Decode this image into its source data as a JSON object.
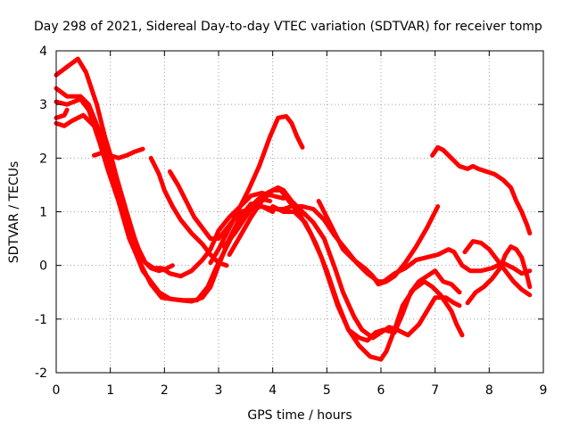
{
  "chart_data": {
    "type": "scatter",
    "title": "Day 298 of 2021, Sidereal Day-to-day VTEC variation (SDTVAR) for receiver tomp",
    "xlabel": "GPS time / hours",
    "ylabel": "SDTVAR / TECUs",
    "xlim": [
      0,
      9
    ],
    "ylim": [
      -2,
      4
    ],
    "xticks": [
      "0",
      "1",
      "2",
      "3",
      "4",
      "5",
      "6",
      "7",
      "8",
      "9"
    ],
    "yticks": [
      "-2",
      "-1",
      "0",
      "1",
      "2",
      "3",
      "4"
    ],
    "grid": true,
    "marker": "+",
    "color": "#ff0000",
    "series": [
      {
        "name": "s1",
        "points": [
          [
            0,
            3.55
          ],
          [
            0.2,
            3.7
          ],
          [
            0.4,
            3.85
          ],
          [
            0.55,
            3.6
          ],
          [
            0.75,
            3.0
          ],
          [
            0.9,
            2.4
          ],
          [
            1.05,
            1.9
          ],
          [
            1.2,
            1.3
          ],
          [
            1.35,
            0.8
          ],
          [
            1.5,
            0.35
          ],
          [
            1.65,
            0.05
          ],
          [
            1.8,
            -0.05
          ],
          [
            1.95,
            -0.05
          ],
          [
            2.1,
            -0.15
          ],
          [
            2.3,
            -0.2
          ],
          [
            2.5,
            -0.1
          ],
          [
            2.7,
            0.1
          ],
          [
            2.85,
            0.3
          ],
          [
            3.0,
            0.65
          ],
          [
            3.2,
            0.9
          ],
          [
            3.4,
            1.1
          ],
          [
            3.6,
            1.3
          ],
          [
            3.8,
            1.35
          ],
          [
            4.0,
            1.3
          ],
          [
            4.2,
            1.25
          ]
        ]
      },
      {
        "name": "s2",
        "points": [
          [
            0,
            3.3
          ],
          [
            0.2,
            3.15
          ],
          [
            0.45,
            3.15
          ],
          [
            0.6,
            3.0
          ],
          [
            0.8,
            2.5
          ],
          [
            1.0,
            1.9
          ],
          [
            1.2,
            1.1
          ],
          [
            1.4,
            0.4
          ],
          [
            1.6,
            -0.1
          ],
          [
            1.75,
            -0.3
          ],
          [
            1.9,
            -0.5
          ],
          [
            2.1,
            -0.62
          ],
          [
            2.3,
            -0.65
          ],
          [
            2.5,
            -0.67
          ],
          [
            2.7,
            -0.6
          ],
          [
            2.85,
            -0.4
          ],
          [
            3.0,
            0.0
          ],
          [
            3.2,
            0.5
          ],
          [
            3.4,
            0.9
          ],
          [
            3.6,
            1.15
          ],
          [
            3.8,
            1.1
          ],
          [
            4.0,
            1.0
          ]
        ]
      },
      {
        "name": "s3",
        "points": [
          [
            0,
            3.05
          ],
          [
            0.2,
            3.0
          ],
          [
            0.45,
            3.1
          ],
          [
            0.6,
            2.9
          ],
          [
            0.8,
            2.3
          ],
          [
            0.95,
            1.8
          ],
          [
            1.15,
            1.2
          ],
          [
            1.35,
            0.5
          ],
          [
            1.55,
            0.05
          ],
          [
            1.75,
            -0.35
          ],
          [
            1.95,
            -0.6
          ],
          [
            2.15,
            -0.63
          ],
          [
            2.35,
            -0.65
          ],
          [
            2.6,
            -0.65
          ],
          [
            2.8,
            -0.4
          ],
          [
            2.95,
            -0.05
          ],
          [
            3.15,
            0.35
          ],
          [
            3.35,
            0.75
          ],
          [
            3.55,
            1.05
          ],
          [
            3.75,
            1.25
          ],
          [
            3.95,
            1.2
          ]
        ]
      },
      {
        "name": "s4",
        "points": [
          [
            0,
            2.65
          ],
          [
            0.15,
            2.6
          ],
          [
            0.3,
            2.7
          ],
          [
            0.5,
            2.8
          ],
          [
            0.7,
            2.6
          ],
          [
            0.9,
            2.2
          ],
          [
            1.1,
            1.7
          ],
          [
            1.3,
            1.0
          ],
          [
            1.45,
            0.5
          ],
          [
            1.6,
            0.1
          ],
          [
            1.75,
            -0.05
          ],
          [
            1.9,
            -0.1
          ],
          [
            2.05,
            -0.05
          ],
          [
            2.15,
            0.0
          ]
        ]
      },
      {
        "name": "s5",
        "points": [
          [
            0,
            2.75
          ],
          [
            0.15,
            2.8
          ],
          [
            0.2,
            2.9
          ]
        ]
      },
      {
        "name": "s6",
        "points": [
          [
            0.7,
            2.05
          ],
          [
            0.85,
            2.1
          ],
          [
            1.0,
            2.05
          ],
          [
            1.15,
            2.0
          ],
          [
            1.3,
            2.05
          ],
          [
            1.45,
            2.12
          ],
          [
            1.6,
            2.17
          ]
        ]
      },
      {
        "name": "s7",
        "points": [
          [
            1.75,
            2.0
          ],
          [
            1.9,
            1.7
          ],
          [
            2.0,
            1.4
          ],
          [
            2.15,
            1.1
          ],
          [
            2.3,
            0.85
          ],
          [
            2.5,
            0.6
          ],
          [
            2.7,
            0.4
          ],
          [
            2.85,
            0.2
          ],
          [
            3.0,
            0.05
          ],
          [
            3.15,
            0.0
          ]
        ]
      },
      {
        "name": "s8",
        "points": [
          [
            2.1,
            1.75
          ],
          [
            2.25,
            1.5
          ],
          [
            2.4,
            1.2
          ],
          [
            2.55,
            0.9
          ],
          [
            2.7,
            0.7
          ],
          [
            2.85,
            0.5
          ],
          [
            3.0,
            0.5
          ],
          [
            3.2,
            0.75
          ],
          [
            3.4,
            1.0
          ],
          [
            3.6,
            1.05
          ],
          [
            3.8,
            1.1
          ],
          [
            4.0,
            1.05
          ],
          [
            4.2,
            1.05
          ],
          [
            4.35,
            1.1
          ],
          [
            4.55,
            1.1
          ],
          [
            4.75,
            1.05
          ],
          [
            4.95,
            0.85
          ],
          [
            5.15,
            0.55
          ],
          [
            5.35,
            0.3
          ],
          [
            5.55,
            0.05
          ],
          [
            5.75,
            -0.15
          ],
          [
            5.95,
            -0.3
          ],
          [
            6.05,
            -0.3
          ],
          [
            6.25,
            -0.15
          ],
          [
            6.45,
            -0.05
          ],
          [
            6.65,
            0.1
          ],
          [
            6.85,
            0.15
          ],
          [
            7.05,
            0.2
          ],
          [
            7.25,
            0.3
          ],
          [
            7.35,
            0.25
          ],
          [
            7.5,
            0.0
          ],
          [
            7.65,
            -0.1
          ],
          [
            7.85,
            -0.1
          ],
          [
            8.05,
            -0.05
          ],
          [
            8.25,
            0.05
          ],
          [
            8.45,
            -0.05
          ],
          [
            8.6,
            -0.15
          ],
          [
            8.75,
            -0.1
          ]
        ]
      },
      {
        "name": "s9",
        "points": [
          [
            2.85,
            0.05
          ],
          [
            3.0,
            0.3
          ],
          [
            3.15,
            0.6
          ],
          [
            3.35,
            1.0
          ],
          [
            3.55,
            1.4
          ],
          [
            3.75,
            1.85
          ],
          [
            3.95,
            2.4
          ],
          [
            4.1,
            2.75
          ],
          [
            4.25,
            2.78
          ],
          [
            4.35,
            2.65
          ],
          [
            4.45,
            2.4
          ],
          [
            4.55,
            2.2
          ]
        ]
      },
      {
        "name": "s10",
        "points": [
          [
            3.1,
            0.35
          ],
          [
            3.3,
            0.6
          ],
          [
            3.5,
            0.9
          ],
          [
            3.7,
            1.2
          ],
          [
            3.9,
            1.35
          ],
          [
            4.1,
            1.45
          ],
          [
            4.2,
            1.4
          ],
          [
            4.35,
            1.2
          ],
          [
            4.55,
            1.0
          ],
          [
            4.75,
            0.8
          ],
          [
            4.95,
            0.5
          ],
          [
            5.15,
            -0.05
          ],
          [
            5.3,
            -0.5
          ],
          [
            5.5,
            -0.95
          ],
          [
            5.65,
            -1.2
          ],
          [
            5.85,
            -1.35
          ],
          [
            6.0,
            -1.25
          ],
          [
            6.15,
            -1.15
          ],
          [
            6.3,
            -1.2
          ],
          [
            6.5,
            -1.3
          ],
          [
            6.7,
            -1.1
          ],
          [
            6.85,
            -0.85
          ],
          [
            7.0,
            -0.6
          ],
          [
            7.2,
            -0.6
          ],
          [
            7.35,
            -0.7
          ],
          [
            7.45,
            -0.75
          ]
        ]
      },
      {
        "name": "s11",
        "points": [
          [
            3.2,
            0.2
          ],
          [
            3.4,
            0.55
          ],
          [
            3.6,
            0.9
          ],
          [
            3.8,
            1.2
          ],
          [
            4.0,
            1.4
          ],
          [
            4.15,
            1.4
          ],
          [
            4.3,
            1.2
          ],
          [
            4.5,
            0.95
          ],
          [
            4.7,
            0.6
          ],
          [
            4.9,
            0.15
          ],
          [
            5.05,
            -0.3
          ],
          [
            5.2,
            -0.75
          ],
          [
            5.4,
            -1.2
          ],
          [
            5.6,
            -1.5
          ],
          [
            5.8,
            -1.7
          ],
          [
            6.0,
            -1.75
          ],
          [
            6.1,
            -1.6
          ],
          [
            6.25,
            -1.2
          ],
          [
            6.4,
            -0.75
          ],
          [
            6.6,
            -0.45
          ],
          [
            6.8,
            -0.3
          ],
          [
            6.95,
            -0.4
          ],
          [
            7.1,
            -0.55
          ],
          [
            7.3,
            -0.85
          ],
          [
            7.4,
            -1.1
          ],
          [
            7.5,
            -1.3
          ]
        ]
      },
      {
        "name": "s12",
        "points": [
          [
            4.0,
            1.1
          ],
          [
            4.2,
            1.0
          ],
          [
            4.4,
            1.0
          ],
          [
            4.6,
            0.8
          ],
          [
            4.8,
            0.4
          ],
          [
            5.0,
            -0.1
          ],
          [
            5.2,
            -0.7
          ],
          [
            5.4,
            -1.2
          ],
          [
            5.6,
            -1.35
          ],
          [
            5.75,
            -1.4
          ],
          [
            5.9,
            -1.25
          ],
          [
            6.05,
            -1.2
          ],
          [
            6.25,
            -1.25
          ],
          [
            6.4,
            -0.9
          ],
          [
            6.55,
            -0.5
          ],
          [
            6.7,
            -0.3
          ],
          [
            6.85,
            -0.2
          ],
          [
            7.0,
            -0.1
          ],
          [
            7.15,
            -0.3
          ],
          [
            7.3,
            -0.35
          ],
          [
            7.45,
            -0.5
          ]
        ]
      },
      {
        "name": "s13",
        "points": [
          [
            4.85,
            1.2
          ],
          [
            5.0,
            0.9
          ],
          [
            5.15,
            0.6
          ],
          [
            5.3,
            0.3
          ],
          [
            5.5,
            0.1
          ],
          [
            5.7,
            -0.05
          ],
          [
            5.85,
            -0.2
          ],
          [
            5.95,
            -0.35
          ],
          [
            6.1,
            -0.3
          ],
          [
            6.25,
            -0.2
          ],
          [
            6.45,
            0.05
          ],
          [
            6.65,
            0.35
          ],
          [
            6.85,
            0.7
          ],
          [
            7.0,
            1.0
          ],
          [
            7.05,
            1.1
          ]
        ]
      },
      {
        "name": "s14",
        "points": [
          [
            6.95,
            2.05
          ],
          [
            7.05,
            2.2
          ],
          [
            7.15,
            2.15
          ],
          [
            7.3,
            2.0
          ],
          [
            7.45,
            1.85
          ],
          [
            7.6,
            1.8
          ],
          [
            7.7,
            1.85
          ],
          [
            7.8,
            1.8
          ],
          [
            7.95,
            1.75
          ],
          [
            8.1,
            1.7
          ],
          [
            8.25,
            1.6
          ],
          [
            8.4,
            1.45
          ],
          [
            8.5,
            1.2
          ],
          [
            8.6,
            1.0
          ],
          [
            8.7,
            0.75
          ],
          [
            8.75,
            0.6
          ]
        ]
      },
      {
        "name": "s15",
        "points": [
          [
            7.6,
            -0.7
          ],
          [
            7.75,
            -0.5
          ],
          [
            7.9,
            -0.4
          ],
          [
            8.05,
            -0.25
          ],
          [
            8.2,
            -0.05
          ],
          [
            8.3,
            0.2
          ],
          [
            8.4,
            0.35
          ],
          [
            8.5,
            0.3
          ],
          [
            8.6,
            0.15
          ],
          [
            8.7,
            -0.2
          ],
          [
            8.75,
            -0.4
          ]
        ]
      },
      {
        "name": "s16",
        "points": [
          [
            7.55,
            0.25
          ],
          [
            7.7,
            0.45
          ],
          [
            7.85,
            0.42
          ],
          [
            8.0,
            0.3
          ],
          [
            8.15,
            0.1
          ],
          [
            8.3,
            -0.1
          ],
          [
            8.45,
            -0.3
          ],
          [
            8.6,
            -0.45
          ],
          [
            8.75,
            -0.55
          ]
        ]
      }
    ]
  }
}
